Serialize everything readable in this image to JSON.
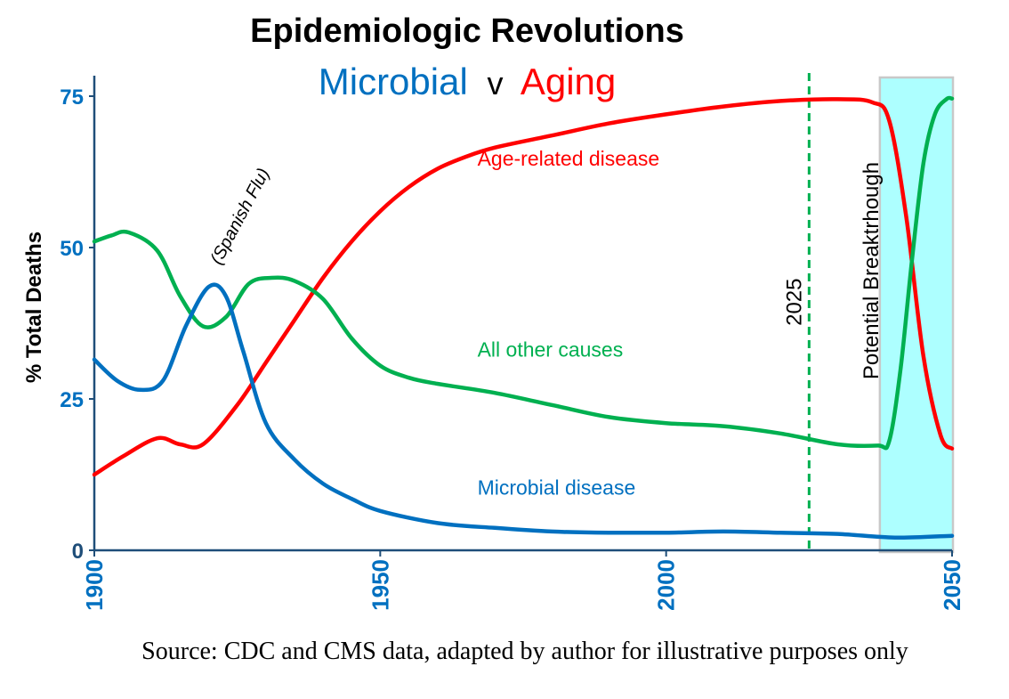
{
  "chart_data": {
    "type": "line",
    "title": "Epidemiologic Revolutions",
    "subtitle": {
      "part1": "Microbial",
      "part2": "v",
      "part3": "Aging"
    },
    "xlabel": "",
    "ylabel": "% Total Deaths",
    "xlim": [
      1900,
      2050
    ],
    "ylim": [
      0,
      78
    ],
    "x_ticks": [
      "1900",
      "1950",
      "2000",
      "2050"
    ],
    "y_ticks": [
      "0",
      "25",
      "50",
      "75"
    ],
    "grid": false,
    "colors": {
      "microbial": "#0070C0",
      "aging": "#FF0000",
      "other": "#00B050",
      "axis": "#1F4E79",
      "tick_label": "#0070C0",
      "marker": "#00B050",
      "highlight": "#00FFFF"
    },
    "series": [
      {
        "name": "Age-related disease",
        "color": "#FF0000",
        "x": [
          1900,
          1905,
          1911,
          1915,
          1919,
          1925,
          1930,
          1935,
          1940,
          1945,
          1950,
          1955,
          1960,
          1965,
          1970,
          1980,
          1990,
          2000,
          2010,
          2020,
          2030,
          2036,
          2039,
          2042,
          2045,
          2048,
          2050
        ],
        "y": [
          12.5,
          15.5,
          18.5,
          17.5,
          17.5,
          24,
          31,
          38,
          45,
          51,
          56,
          60,
          63,
          65,
          66.5,
          68.5,
          70.5,
          72,
          73.3,
          74.2,
          74.5,
          74,
          71,
          55,
          32,
          19,
          16.8
        ]
      },
      {
        "name": "All other causes",
        "color": "#00B050",
        "x": [
          1900,
          1903,
          1906,
          1911,
          1915,
          1919,
          1923,
          1927,
          1931,
          1935,
          1940,
          1945,
          1950,
          1955,
          1960,
          1970,
          1980,
          1990,
          2000,
          2010,
          2020,
          2030,
          2037,
          2039,
          2041,
          2043,
          2045,
          2047,
          2049,
          2050
        ],
        "y": [
          51,
          52,
          52.5,
          49.5,
          42,
          37,
          38.5,
          44,
          45,
          44.5,
          41.5,
          35,
          30.5,
          28.5,
          27.5,
          26,
          24,
          22,
          21,
          20.5,
          19.3,
          17.5,
          17.3,
          18,
          30,
          48,
          64,
          72,
          74.5,
          74.6
        ]
      },
      {
        "name": "Microbial disease",
        "color": "#0070C0",
        "x": [
          1900,
          1904,
          1908,
          1912,
          1916,
          1920,
          1923,
          1926,
          1930,
          1935,
          1940,
          1945,
          1950,
          1960,
          1970,
          1980,
          1990,
          2000,
          2010,
          2020,
          2030,
          2040,
          2050
        ],
        "y": [
          31.5,
          28,
          26.5,
          28,
          37,
          43.5,
          42,
          33,
          21,
          15,
          11,
          8.5,
          6.5,
          4.5,
          3.7,
          3.1,
          2.9,
          2.9,
          3.1,
          2.9,
          2.7,
          2.1,
          2.4
        ]
      }
    ],
    "annotations": {
      "series_labels": {
        "aging": {
          "text": "Age-related disease",
          "x": 1967,
          "y": 63.5
        },
        "other": {
          "text": "All other causes",
          "x": 1967,
          "y": 32
        },
        "microbial": {
          "text": "Microbial disease",
          "x": 1967,
          "y": 9.2
        }
      },
      "spanish_flu": {
        "text": "(Spanish Flu)",
        "x": 1922,
        "y": 47
      },
      "marker_2025": {
        "x": 2025,
        "label": "2025",
        "label_y": 41
      },
      "breakthrough_band": {
        "x_start": 2038,
        "x_end": 2050,
        "label": "Potential Breaktrhough"
      }
    },
    "source": "Source: CDC and CMS data, adapted by author for illustrative purposes only"
  }
}
